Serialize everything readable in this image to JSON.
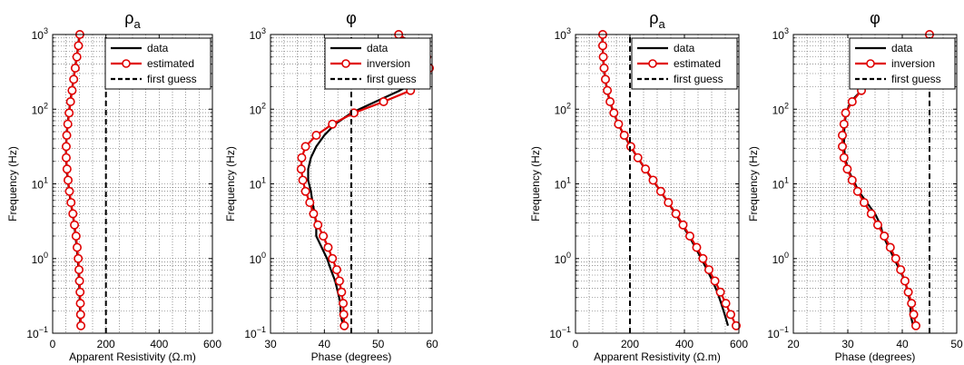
{
  "figure": {
    "background": "#ffffff"
  },
  "colors": {
    "data": "#000000",
    "model": "#e00000",
    "guess": "#000000",
    "grid": "#555555"
  },
  "chart_data": [
    {
      "type": "line",
      "x_scale": "linear",
      "y_scale": "log",
      "title": "ρ",
      "title_sub": "a",
      "xlabel": "Apparent Resistivity (Ω.m)",
      "ylabel": "Frequency (Hz)",
      "xlim": [
        0,
        600
      ],
      "ylim": [
        0.1,
        1000
      ],
      "xticks": [
        0,
        200,
        400,
        600
      ],
      "yticks": [
        {
          "value": 0.1,
          "base": "10",
          "exp": "−1"
        },
        {
          "value": 1,
          "base": "10",
          "exp": "0"
        },
        {
          "value": 10,
          "base": "10",
          "exp": "1"
        },
        {
          "value": 100,
          "base": "10",
          "exp": "2"
        },
        {
          "value": 1000,
          "base": "10",
          "exp": "3"
        }
      ],
      "grid": true,
      "legend": [
        "data",
        "estimated",
        "first guess"
      ],
      "legend_position": "top-right",
      "series": [
        {
          "name": "data",
          "color": "#000000",
          "x": [
            100,
            96,
            90,
            84,
            78,
            72,
            66,
            61,
            56,
            52,
            50,
            50,
            53,
            57,
            62,
            68,
            75,
            81,
            86,
            90,
            94,
            97,
            99,
            101,
            102,
            103,
            104
          ],
          "y": [
            1000,
            708,
            501,
            355,
            251,
            178,
            126,
            89.1,
            63.1,
            44.7,
            31.6,
            22.4,
            15.8,
            11.2,
            7.94,
            5.62,
            3.98,
            2.82,
            2.0,
            1.41,
            1.0,
            0.708,
            0.501,
            0.355,
            0.251,
            0.178,
            0.126
          ]
        },
        {
          "name": "estimated",
          "color": "#e00000",
          "markers": true,
          "x": [
            102,
            97,
            91,
            85,
            79,
            73,
            67,
            62,
            57,
            53,
            51,
            51,
            54,
            58,
            63,
            69,
            76,
            82,
            88,
            92,
            96,
            99,
            101,
            103,
            104,
            105,
            106
          ],
          "y": [
            1000,
            708,
            501,
            355,
            251,
            178,
            126,
            89.1,
            63.1,
            44.7,
            31.6,
            22.4,
            15.8,
            11.2,
            7.94,
            5.62,
            3.98,
            2.82,
            2.0,
            1.41,
            1.0,
            0.708,
            0.501,
            0.355,
            0.251,
            0.178,
            0.126
          ]
        },
        {
          "name": "first guess",
          "color": "#000000",
          "dashed": true,
          "x": [
            200,
            200
          ],
          "y": [
            0.1,
            1000
          ]
        }
      ]
    },
    {
      "type": "line",
      "x_scale": "linear",
      "y_scale": "log",
      "title": "φ",
      "title_sub": "",
      "xlabel": "Phase (degrees)",
      "ylabel": "Frequency (Hz)",
      "xlim": [
        30,
        60
      ],
      "ylim": [
        0.1,
        1000
      ],
      "xticks": [
        30,
        40,
        50,
        60
      ],
      "yticks": [
        {
          "value": 0.1,
          "base": "10",
          "exp": "−1"
        },
        {
          "value": 1,
          "base": "10",
          "exp": "0"
        },
        {
          "value": 10,
          "base": "10",
          "exp": "1"
        },
        {
          "value": 100,
          "base": "10",
          "exp": "2"
        },
        {
          "value": 1000,
          "base": "10",
          "exp": "3"
        }
      ],
      "grid": true,
      "legend": [
        "data",
        "inversion",
        "first guess"
      ],
      "legend_position": "top-right",
      "series": [
        {
          "name": "data",
          "color": "#000000",
          "x": [
            54,
            56.5,
            58.5,
            59,
            58,
            54,
            49.5,
            45,
            42,
            40,
            38.5,
            37.5,
            37,
            37,
            37.5,
            37.8,
            38.2,
            38.5,
            38.5,
            39.5,
            40.5,
            41.2,
            42,
            42.5,
            43,
            43,
            43.5
          ],
          "y": [
            1000,
            708,
            501,
            355,
            251,
            178,
            126,
            89.1,
            63.1,
            44.7,
            31.6,
            22.4,
            15.8,
            11.2,
            7.94,
            5.62,
            3.98,
            2.82,
            2.0,
            1.41,
            1.0,
            0.708,
            0.501,
            0.355,
            0.251,
            0.178,
            0.126
          ]
        },
        {
          "name": "inversion",
          "color": "#e00000",
          "markers": true,
          "x": [
            53.8,
            57,
            59,
            59.5,
            58.8,
            56,
            51,
            45.5,
            41.5,
            38.5,
            36.5,
            35.8,
            35.7,
            36,
            36.5,
            37.3,
            38,
            38.8,
            39.8,
            40.7,
            41.5,
            42.3,
            42.8,
            43.2,
            43.5,
            43.6,
            43.7
          ],
          "y": [
            1000,
            708,
            501,
            355,
            251,
            178,
            126,
            89.1,
            63.1,
            44.7,
            31.6,
            22.4,
            15.8,
            11.2,
            7.94,
            5.62,
            3.98,
            2.82,
            2.0,
            1.41,
            1.0,
            0.708,
            0.501,
            0.355,
            0.251,
            0.178,
            0.126
          ]
        },
        {
          "name": "first guess",
          "color": "#000000",
          "dashed": true,
          "x": [
            45,
            45
          ],
          "y": [
            0.1,
            1000
          ]
        }
      ]
    },
    {
      "type": "line",
      "x_scale": "linear",
      "y_scale": "log",
      "title": "ρ",
      "title_sub": "a",
      "xlabel": "Apparent Resistivity (Ω.m)",
      "ylabel": "Frequency (Hz)",
      "xlim": [
        0,
        600
      ],
      "ylim": [
        0.1,
        1000
      ],
      "xticks": [
        0,
        200,
        400,
        600
      ],
      "yticks": [
        {
          "value": 0.1,
          "base": "10",
          "exp": "−1"
        },
        {
          "value": 1,
          "base": "10",
          "exp": "0"
        },
        {
          "value": 10,
          "base": "10",
          "exp": "1"
        },
        {
          "value": 100,
          "base": "10",
          "exp": "2"
        },
        {
          "value": 1000,
          "base": "10",
          "exp": "3"
        }
      ],
      "grid": true,
      "legend": [
        "data",
        "estimated",
        "first guess"
      ],
      "legend_position": "top-right",
      "series": [
        {
          "name": "data",
          "color": "#000000",
          "x": [
            98,
            99,
            101,
            104,
            109,
            116,
            126,
            140,
            157,
            178,
            202,
            228,
            256,
            284,
            312,
            340,
            367,
            392,
            417,
            440,
            462,
            483,
            503,
            521,
            535,
            548,
            560
          ],
          "y": [
            1000,
            708,
            501,
            355,
            251,
            178,
            126,
            89.1,
            63.1,
            44.7,
            31.6,
            22.4,
            15.8,
            11.2,
            7.94,
            5.62,
            3.98,
            2.82,
            2.0,
            1.41,
            1.0,
            0.708,
            0.501,
            0.355,
            0.251,
            0.178,
            0.126
          ]
        },
        {
          "name": "estimated",
          "color": "#e00000",
          "markers": true,
          "x": [
            100,
            100,
            102,
            105,
            110,
            117,
            127,
            141,
            158,
            179,
            203,
            229,
            257,
            285,
            313,
            341,
            369,
            395,
            420,
            445,
            468,
            490,
            512,
            532,
            552,
            570,
            590
          ],
          "y": [
            1000,
            708,
            501,
            355,
            251,
            178,
            126,
            89.1,
            63.1,
            44.7,
            31.6,
            22.4,
            15.8,
            11.2,
            7.94,
            5.62,
            3.98,
            2.82,
            2.0,
            1.41,
            1.0,
            0.708,
            0.501,
            0.355,
            0.251,
            0.178,
            0.126
          ]
        },
        {
          "name": "first guess",
          "color": "#000000",
          "dashed": true,
          "x": [
            200,
            200
          ],
          "y": [
            0.1,
            1000
          ]
        }
      ]
    },
    {
      "type": "line",
      "x_scale": "linear",
      "y_scale": "log",
      "title": "φ",
      "title_sub": "",
      "xlabel": "Phase (degrees)",
      "ylabel": "Frequency (Hz)",
      "xlim": [
        20,
        50
      ],
      "ylim": [
        0.1,
        1000
      ],
      "xticks": [
        20,
        30,
        40,
        50
      ],
      "yticks": [
        {
          "value": 0.1,
          "base": "10",
          "exp": "−1"
        },
        {
          "value": 1,
          "base": "10",
          "exp": "0"
        },
        {
          "value": 10,
          "base": "10",
          "exp": "1"
        },
        {
          "value": 100,
          "base": "10",
          "exp": "2"
        },
        {
          "value": 1000,
          "base": "10",
          "exp": "3"
        }
      ],
      "grid": true,
      "legend": [
        "data",
        "inversion",
        "first guess"
      ],
      "legend_position": "top-right",
      "series": [
        {
          "name": "data",
          "color": "#000000",
          "x": [
            45,
            44,
            41,
            38,
            35,
            32.5,
            30.5,
            29.7,
            29.4,
            29.3,
            29.3,
            29.5,
            30,
            31,
            32,
            33.5,
            35,
            36,
            36.5,
            37.5,
            38.5,
            39.5,
            40.5,
            41,
            41.5,
            41.5,
            42
          ],
          "y": [
            1000,
            708,
            501,
            355,
            251,
            178,
            126,
            89.1,
            63.1,
            44.7,
            31.6,
            22.4,
            15.8,
            11.2,
            7.94,
            5.62,
            3.98,
            2.82,
            2.0,
            1.41,
            1.0,
            0.708,
            0.501,
            0.355,
            0.251,
            0.178,
            0.126
          ]
        },
        {
          "name": "inversion",
          "color": "#e00000",
          "markers": true,
          "x": [
            45,
            44.5,
            42,
            38,
            35,
            32.5,
            30.8,
            29.6,
            29.3,
            29.0,
            29.0,
            29.3,
            29.9,
            30.8,
            31.8,
            33.0,
            34.3,
            35.5,
            36.7,
            37.8,
            38.8,
            39.7,
            40.5,
            41.1,
            41.7,
            42.1,
            42.5
          ],
          "y": [
            1000,
            708,
            501,
            355,
            251,
            178,
            126,
            89.1,
            63.1,
            44.7,
            31.6,
            22.4,
            15.8,
            11.2,
            7.94,
            5.62,
            3.98,
            2.82,
            2.0,
            1.41,
            1.0,
            0.708,
            0.501,
            0.355,
            0.251,
            0.178,
            0.126
          ]
        },
        {
          "name": "first guess",
          "color": "#000000",
          "dashed": true,
          "x": [
            45,
            45
          ],
          "y": [
            0.1,
            1000
          ]
        }
      ]
    }
  ]
}
